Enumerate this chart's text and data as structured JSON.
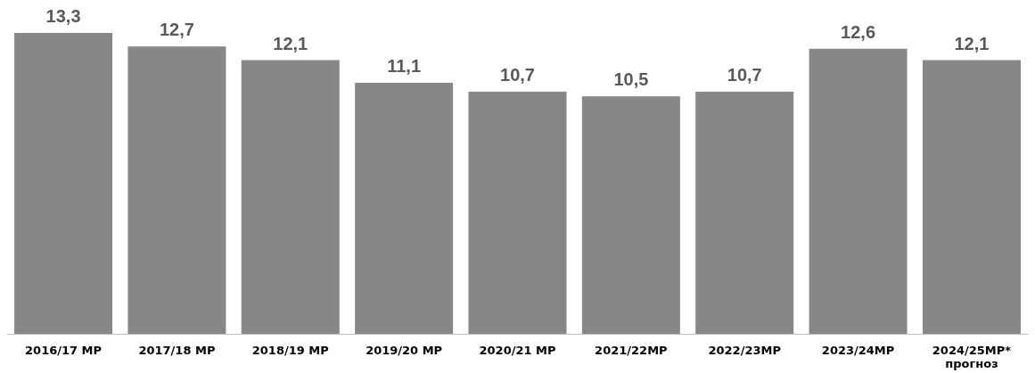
{
  "chart_data": {
    "type": "bar",
    "categories": [
      "2016/17 МР",
      "2017/18 МР",
      "2018/19 МР",
      "2019/20 МР",
      "2020/21 МР",
      "2021/22МР",
      "2022/23МР",
      "2023/24МР",
      "2024/25МР*\nпрогноз"
    ],
    "series": [
      {
        "color": "#878787",
        "values": [
          13.3,
          12.7,
          12.1,
          11.1,
          10.7,
          10.5,
          10.7,
          12.6,
          12.1
        ],
        "value_labels": [
          "13,3",
          "12,7",
          "12,1",
          "11,1",
          "10,7",
          "10,5",
          "10,7",
          "12,6",
          "12,1"
        ]
      }
    ]
  }
}
